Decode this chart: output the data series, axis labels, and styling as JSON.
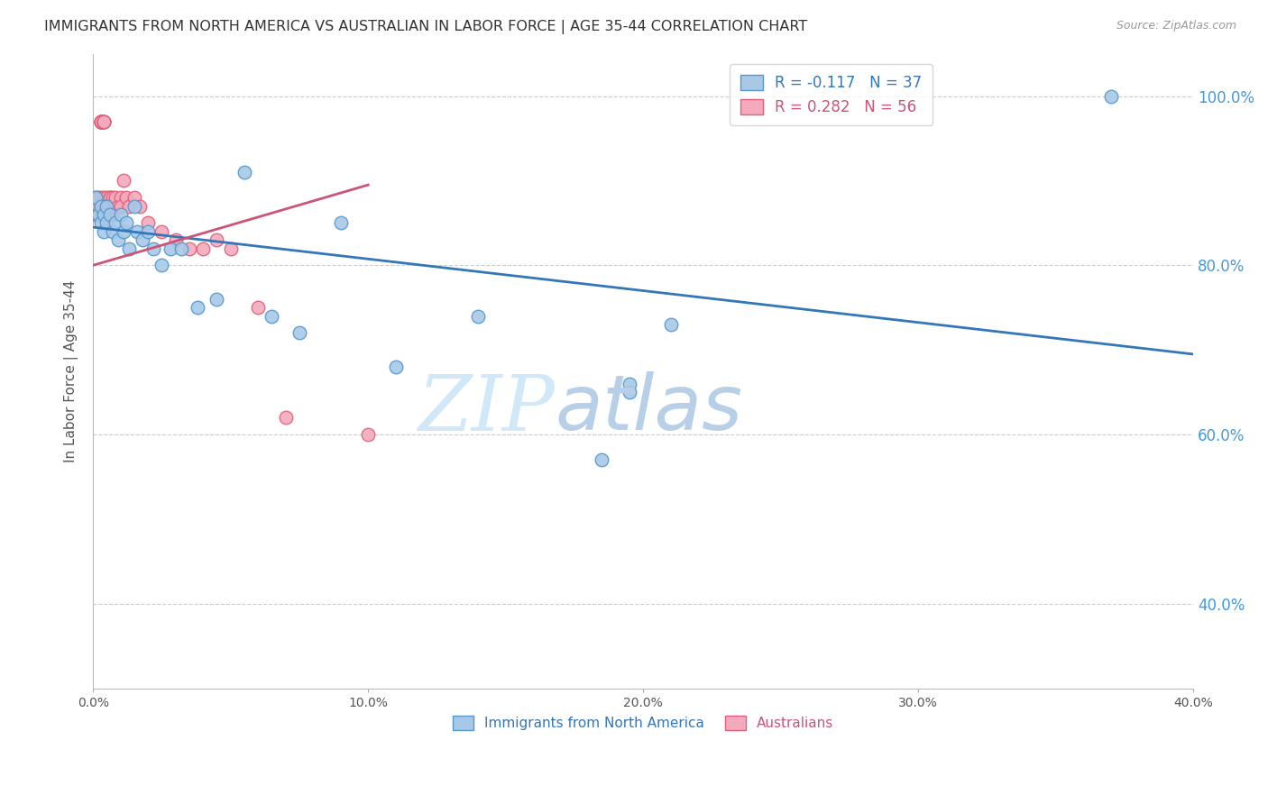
{
  "title": "IMMIGRANTS FROM NORTH AMERICA VS AUSTRALIAN IN LABOR FORCE | AGE 35-44 CORRELATION CHART",
  "source": "Source: ZipAtlas.com",
  "ylabel": "In Labor Force | Age 35-44",
  "xlim": [
    0.0,
    0.4
  ],
  "ylim": [
    0.3,
    1.05
  ],
  "xticks": [
    0.0,
    0.1,
    0.2,
    0.3,
    0.4
  ],
  "xtick_labels": [
    "0.0%",
    "10.0%",
    "20.0%",
    "30.0%",
    "40.0%"
  ],
  "yticks": [
    0.4,
    0.6,
    0.8,
    1.0
  ],
  "ytick_labels": [
    "40.0%",
    "60.0%",
    "80.0%",
    "100.0%"
  ],
  "blue_fill": "#a8c8e8",
  "blue_edge": "#5599cc",
  "pink_fill": "#f4aabc",
  "pink_edge": "#e0607a",
  "blue_line_color": "#3377bb",
  "pink_line_color": "#cc5577",
  "R_blue": -0.117,
  "N_blue": 37,
  "R_pink": 0.282,
  "N_pink": 56,
  "blue_trend_x0": 0.0,
  "blue_trend_y0": 0.845,
  "blue_trend_x1": 0.4,
  "blue_trend_y1": 0.695,
  "pink_trend_x0": 0.0,
  "pink_trend_y0": 0.8,
  "pink_trend_x1": 0.1,
  "pink_trend_y1": 0.895,
  "blue_scatter_x": [
    0.001,
    0.002,
    0.003,
    0.003,
    0.004,
    0.004,
    0.005,
    0.005,
    0.006,
    0.007,
    0.008,
    0.009,
    0.01,
    0.011,
    0.012,
    0.013,
    0.015,
    0.016,
    0.018,
    0.02,
    0.022,
    0.025,
    0.028,
    0.032,
    0.038,
    0.045,
    0.055,
    0.065,
    0.075,
    0.09,
    0.11,
    0.14,
    0.185,
    0.195,
    0.21,
    0.195,
    0.37
  ],
  "blue_scatter_y": [
    0.88,
    0.86,
    0.87,
    0.85,
    0.86,
    0.84,
    0.87,
    0.85,
    0.86,
    0.84,
    0.85,
    0.83,
    0.86,
    0.84,
    0.85,
    0.82,
    0.87,
    0.84,
    0.83,
    0.84,
    0.82,
    0.8,
    0.82,
    0.82,
    0.75,
    0.76,
    0.91,
    0.74,
    0.72,
    0.85,
    0.68,
    0.74,
    0.57,
    0.65,
    0.73,
    0.66,
    1.0
  ],
  "pink_scatter_x": [
    0.001,
    0.001,
    0.001,
    0.002,
    0.002,
    0.002,
    0.002,
    0.003,
    0.003,
    0.003,
    0.003,
    0.003,
    0.003,
    0.003,
    0.003,
    0.003,
    0.003,
    0.004,
    0.004,
    0.004,
    0.004,
    0.004,
    0.004,
    0.004,
    0.004,
    0.005,
    0.005,
    0.005,
    0.006,
    0.006,
    0.006,
    0.006,
    0.006,
    0.007,
    0.007,
    0.007,
    0.008,
    0.008,
    0.009,
    0.01,
    0.01,
    0.011,
    0.012,
    0.013,
    0.015,
    0.017,
    0.02,
    0.025,
    0.03,
    0.035,
    0.04,
    0.045,
    0.05,
    0.06,
    0.07,
    0.1
  ],
  "pink_scatter_y": [
    0.87,
    0.88,
    0.86,
    0.87,
    0.88,
    0.86,
    0.87,
    0.97,
    0.97,
    0.97,
    0.97,
    0.97,
    0.97,
    0.97,
    0.97,
    0.87,
    0.88,
    0.97,
    0.97,
    0.97,
    0.97,
    0.87,
    0.88,
    0.86,
    0.87,
    0.87,
    0.88,
    0.86,
    0.87,
    0.88,
    0.86,
    0.87,
    0.88,
    0.87,
    0.88,
    0.86,
    0.87,
    0.88,
    0.87,
    0.88,
    0.87,
    0.9,
    0.88,
    0.87,
    0.88,
    0.87,
    0.85,
    0.84,
    0.83,
    0.82,
    0.82,
    0.83,
    0.82,
    0.75,
    0.62,
    0.6
  ],
  "watermark_zip": "ZIP",
  "watermark_atlas": "atlas",
  "watermark_color": "#d0e8f8",
  "background_color": "#ffffff",
  "grid_color": "#cccccc",
  "title_color": "#333333",
  "axis_label_color": "#555555",
  "right_tick_color": "#4499dd",
  "title_fontsize": 11.5,
  "source_fontsize": 9
}
